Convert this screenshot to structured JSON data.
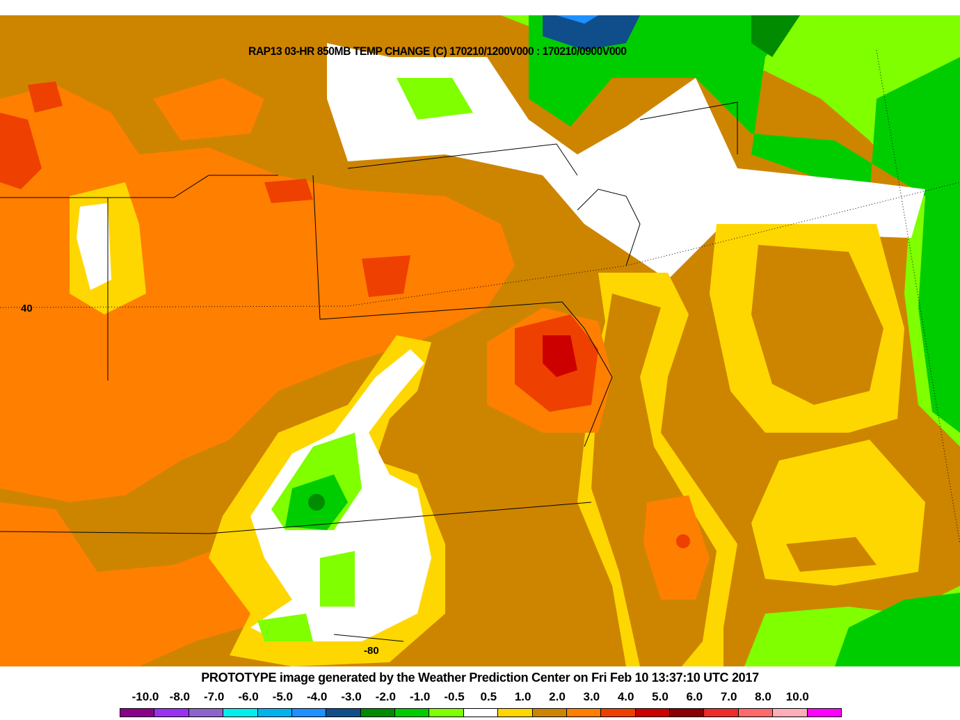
{
  "title": "RAP13 03-HR 850MB TEMP CHANGE (C) 170210/1200V000 : 170210/0900V000",
  "lat_label": "40",
  "lon_label": "-80",
  "footer": "PROTOTYPE image generated by the Weather Prediction Center on Fri Feb 10 13:37:10 UTC 2017",
  "legend": {
    "labels": [
      "-10.0",
      "-8.0",
      "-7.0",
      "-6.0",
      "-5.0",
      "-4.0",
      "-3.0",
      "-2.0",
      "-1.0",
      "-0.5",
      "0.5",
      "1.0",
      "2.0",
      "3.0",
      "4.0",
      "5.0",
      "6.0",
      "7.0",
      "8.0",
      "10.0"
    ],
    "colors": [
      "#8b008b",
      "#9932f0",
      "#8a66cc",
      "#00eeee",
      "#00b2ee",
      "#1e90ff",
      "#104e8b",
      "#008b00",
      "#00cd00",
      "#7fff00",
      "#ffffff",
      "#ffd700",
      "#cd8500",
      "#ff7f00",
      "#ee4000",
      "#cd0000",
      "#8b0000",
      "#ee2c2c",
      "#ff6a6a",
      "#ffaeb9",
      "#ff00ff"
    ]
  }
}
